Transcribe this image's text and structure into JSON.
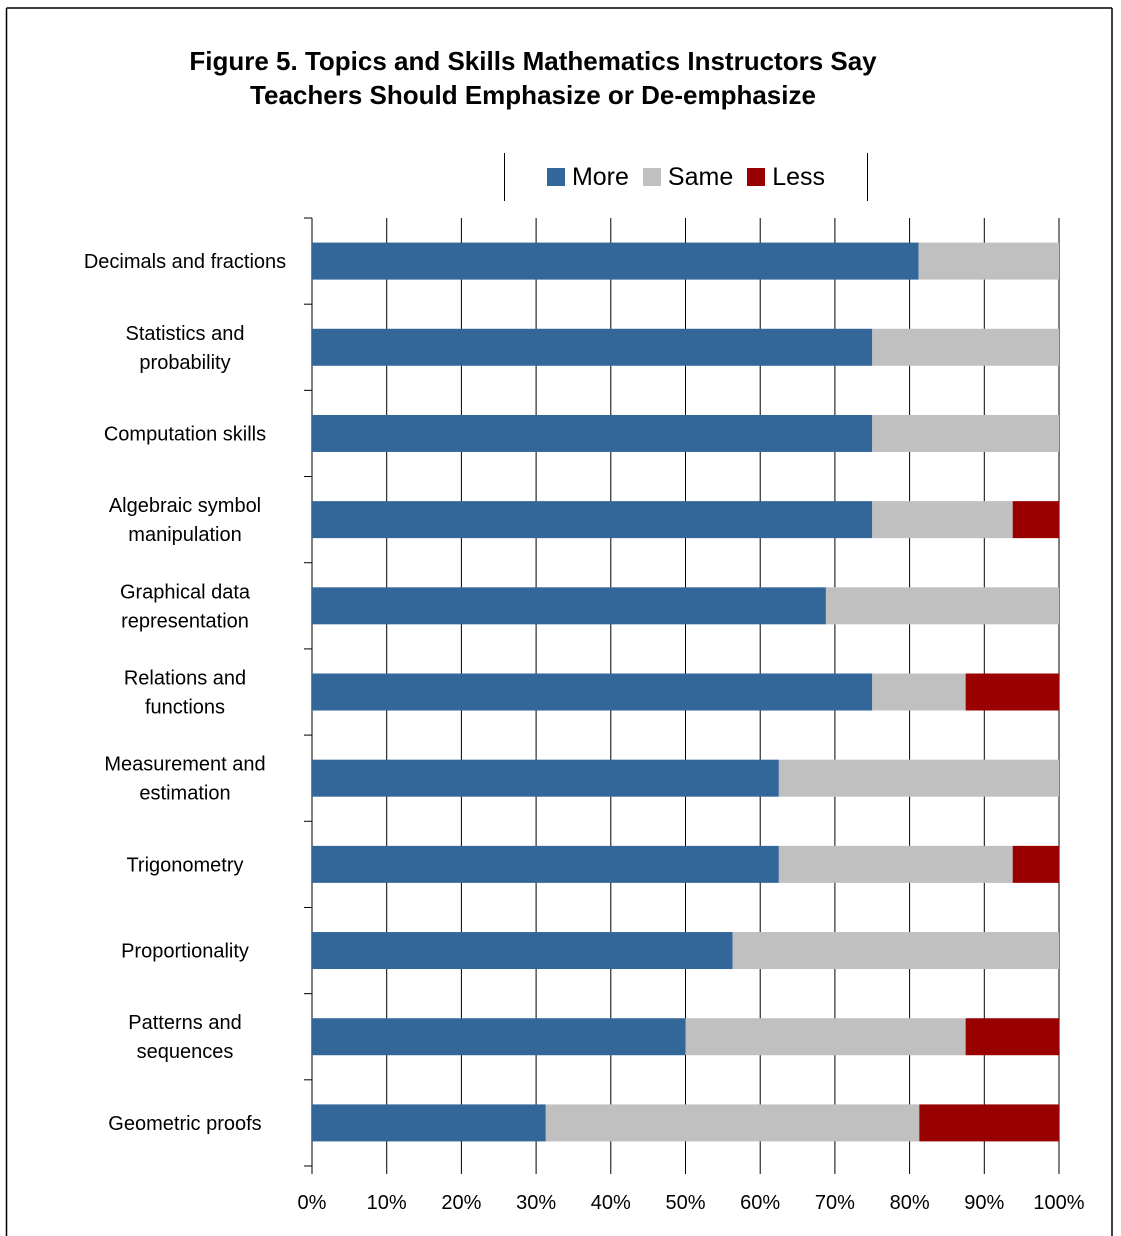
{
  "chart_data": {
    "type": "bar",
    "orientation": "horizontal",
    "stacked": true,
    "title": [
      "Figure 5. Topics and Skills Mathematics Instructors Say",
      "Teachers Should Emphasize or De-emphasize"
    ],
    "categories": [
      [
        "Decimals and fractions"
      ],
      [
        "Statistics and",
        "probability"
      ],
      [
        "Computation skills"
      ],
      [
        "Algebraic symbol",
        "manipulation"
      ],
      [
        "Graphical data",
        "representation"
      ],
      [
        "Relations and",
        "functions"
      ],
      [
        "Measurement and",
        "estimation"
      ],
      [
        "Trigonometry"
      ],
      [
        "Proportionality"
      ],
      [
        "Patterns and",
        "sequences"
      ],
      [
        "Geometric proofs"
      ]
    ],
    "series": [
      {
        "name": "More",
        "color": "#336699",
        "values": [
          81.2,
          75,
          75,
          75,
          68.8,
          75,
          62.5,
          62.5,
          56.3,
          50,
          31.3
        ]
      },
      {
        "name": "Same",
        "color": "#c0c0c0",
        "values": [
          18.8,
          25,
          25,
          18.8,
          31.2,
          12.5,
          37.5,
          31.3,
          43.7,
          37.5,
          50
        ]
      },
      {
        "name": "Less",
        "color": "#990000",
        "values": [
          0,
          0,
          0,
          6.2,
          0,
          12.5,
          0,
          6.2,
          0,
          12.5,
          18.7
        ]
      }
    ],
    "xlim": [
      0,
      100
    ],
    "xticks": [
      "0%",
      "10%",
      "20%",
      "30%",
      "40%",
      "50%",
      "60%",
      "70%",
      "80%",
      "90%",
      "100%"
    ],
    "grid": true,
    "legend_position": "top"
  }
}
